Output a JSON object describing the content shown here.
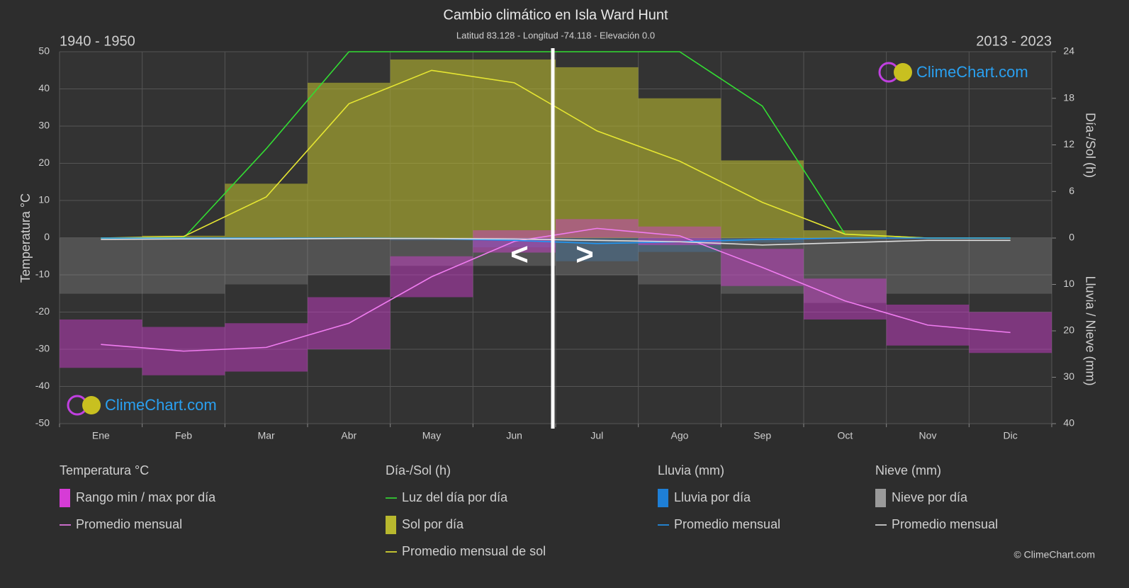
{
  "chart_data": {
    "type": "line",
    "title": "Cambio climático en Isla Ward Hunt",
    "subtitle": "Latitud 83.128 - Longitud -74.118 - Elevación 0.0",
    "period_left": "1940 - 1950",
    "period_right": "2013 - 2023",
    "nav": [
      "<",
      ">"
    ],
    "ylabel": "Temperatura °C",
    "y2label": "Día-/Sol (h)",
    "y3label": "Lluvia / Nieve (mm)",
    "logo": "ClimeChart.com",
    "copyright": "© ClimeChart.com",
    "categories": [
      "Ene",
      "Feb",
      "Mar",
      "Abr",
      "May",
      "Jun",
      "Jul",
      "Ago",
      "Sep",
      "Oct",
      "Nov",
      "Dic"
    ],
    "ylim": [
      -50,
      50
    ],
    "yticks": [
      -50,
      -40,
      -30,
      -20,
      -10,
      0,
      10,
      20,
      30,
      40,
      50
    ],
    "y2lim": [
      0,
      24
    ],
    "y2ticks": [
      0,
      6,
      12,
      18,
      24
    ],
    "y3lim": [
      0,
      40
    ],
    "y3ticks": [
      0,
      10,
      20,
      30,
      40
    ],
    "grid": true,
    "groups": [
      {
        "title": "Temperatura °C",
        "series": [
          {
            "name": "Rango min / max por día",
            "type": "band",
            "color": "#d63cd6",
            "min": [
              -35,
              -37,
              -36,
              -30,
              -16,
              -4,
              0,
              -2,
              -13,
              -22,
              -29,
              -31
            ],
            "max": [
              -22,
              -24,
              -23,
              -16,
              -5,
              2,
              5,
              3,
              -3,
              -11,
              -18,
              -20
            ]
          },
          {
            "name": "Promedio mensual",
            "type": "line",
            "color": "#f07cf0",
            "values": [
              -28.7,
              -30.5,
              -29.5,
              -23,
              -10.5,
              -1,
              2.5,
              0.5,
              -8,
              -17,
              -23.5,
              -25.5
            ]
          }
        ]
      },
      {
        "title": "Día-/Sol (h)",
        "series": [
          {
            "name": "Luz del día por día",
            "type": "line",
            "color": "#33dd33",
            "axis": "y2",
            "values": [
              0,
              0,
              11.5,
              24,
              24,
              24,
              24,
              24,
              17,
              0.5,
              0,
              0
            ]
          },
          {
            "name": "Sol por día",
            "type": "bar",
            "color": "#b8b82e",
            "axis": "y2",
            "values": [
              0,
              0.3,
              7,
              20,
              23,
              23,
              22,
              18,
              10,
              1,
              0,
              0
            ]
          },
          {
            "name": "Promedio mensual de sol",
            "type": "line",
            "color": "#e6e632",
            "axis": "y2",
            "values": [
              0,
              0.2,
              5.3,
              17.3,
              21.6,
              20,
              13.8,
              9.9,
              4.6,
              0.5,
              0,
              0
            ]
          }
        ]
      },
      {
        "title": "Lluvia (mm)",
        "series": [
          {
            "name": "Lluvia por día",
            "type": "bar",
            "color": "#1e7fd6",
            "axis": "y3",
            "values": [
              0,
              0,
              0,
              0,
              0.5,
              2,
              5,
              3,
              1,
              0,
              0,
              0
            ]
          },
          {
            "name": "Promedio mensual",
            "type": "line",
            "color": "#2196f3",
            "axis": "y3",
            "values": [
              0,
              0,
              0,
              0,
              0.1,
              0.5,
              1.2,
              0.8,
              0.3,
              0,
              0,
              0
            ]
          }
        ]
      },
      {
        "title": "Nieve (mm)",
        "series": [
          {
            "name": "Nieve por día",
            "type": "bar",
            "color": "#9a9a9a",
            "axis": "y3",
            "values": [
              12,
              12,
              10,
              8,
              6,
              6,
              8,
              10,
              12,
              14,
              12,
              12
            ]
          },
          {
            "name": "Promedio mensual",
            "type": "line",
            "color": "#dddddd",
            "axis": "y3",
            "values": [
              0.3,
              0.2,
              0.2,
              0.1,
              0.1,
              0.2,
              0.5,
              0.8,
              1.5,
              1,
              0.5,
              0.5
            ]
          }
        ]
      }
    ]
  }
}
